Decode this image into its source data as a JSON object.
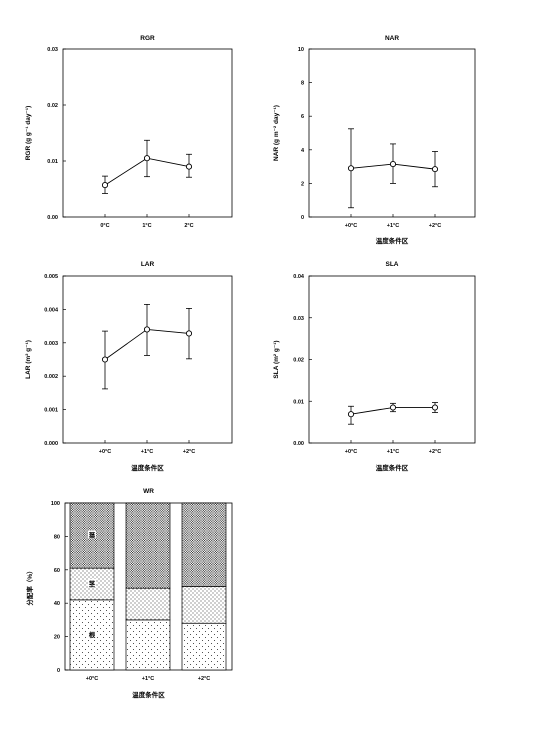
{
  "chart_data": [
    {
      "id": "rgr",
      "type": "line",
      "title": "RGR",
      "ylabel": "RGR (g g⁻¹ day⁻¹)",
      "xlabel": "",
      "categories": [
        "0°C",
        "1°C",
        "2°C"
      ],
      "values": [
        0.0057,
        0.0105,
        0.009
      ],
      "err_low": [
        0.0042,
        0.0072,
        0.0071
      ],
      "err_high": [
        0.0073,
        0.0137,
        0.0112
      ],
      "ylim": [
        0,
        0.03
      ],
      "yticks": [
        "0.00",
        "0.01",
        "0.02",
        "0.03"
      ],
      "grid": false
    },
    {
      "id": "nar",
      "type": "line",
      "title": "NAR",
      "ylabel": "NAR (g m⁻² day⁻¹)",
      "xlabel": "温度条件区",
      "categories": [
        "+0°C",
        "+1°C",
        "+2°C"
      ],
      "values": [
        2.9,
        3.15,
        2.85
      ],
      "err_low": [
        0.55,
        2.0,
        1.8
      ],
      "err_high": [
        5.25,
        4.35,
        3.9
      ],
      "ylim": [
        0,
        10
      ],
      "yticks": [
        "0",
        "2",
        "4",
        "6",
        "8",
        "10"
      ],
      "grid": false
    },
    {
      "id": "lar",
      "type": "line",
      "title": "LAR",
      "ylabel": "LAR (m² g⁻¹)",
      "xlabel": "温度条件区",
      "categories": [
        "+0°C",
        "+1°C",
        "+2°C"
      ],
      "values": [
        0.0025,
        0.0034,
        0.00328
      ],
      "err_low": [
        0.00162,
        0.00262,
        0.00252
      ],
      "err_high": [
        0.00335,
        0.00415,
        0.00403
      ],
      "ylim": [
        0,
        0.005
      ],
      "yticks": [
        "0.000",
        "0.001",
        "0.002",
        "0.003",
        "0.004",
        "0.005"
      ],
      "grid": false
    },
    {
      "id": "sla",
      "type": "line",
      "title": "SLA",
      "ylabel": "SLA (m² g⁻¹)",
      "xlabel": "温度条件区",
      "categories": [
        "+0°C",
        "+1°C",
        "+2°C"
      ],
      "values": [
        0.0069,
        0.0085,
        0.0085
      ],
      "err_low": [
        0.0045,
        0.0075,
        0.0073
      ],
      "err_high": [
        0.0088,
        0.0095,
        0.0097
      ],
      "ylim": [
        0,
        0.04
      ],
      "yticks": [
        "0.00",
        "0.01",
        "0.02",
        "0.03",
        "0.04"
      ],
      "grid": false
    },
    {
      "id": "wr",
      "type": "bar",
      "stacked": true,
      "title": "WR",
      "ylabel": "分配率（%）",
      "xlabel": "温度条件区",
      "categories": [
        "+0°C",
        "+1°C",
        "+2°C"
      ],
      "series": [
        {
          "name": "根",
          "values": [
            42,
            30,
            28
          ],
          "pattern": "sparse-dots"
        },
        {
          "name": "茎",
          "values": [
            19,
            19,
            22
          ],
          "pattern": "medium-dots"
        },
        {
          "name": "葉",
          "values": [
            39,
            51,
            50
          ],
          "pattern": "dense-dots"
        }
      ],
      "ylim": [
        0,
        100
      ],
      "yticks": [
        "0",
        "20",
        "40",
        "60",
        "80",
        "100"
      ],
      "grid": false
    }
  ]
}
